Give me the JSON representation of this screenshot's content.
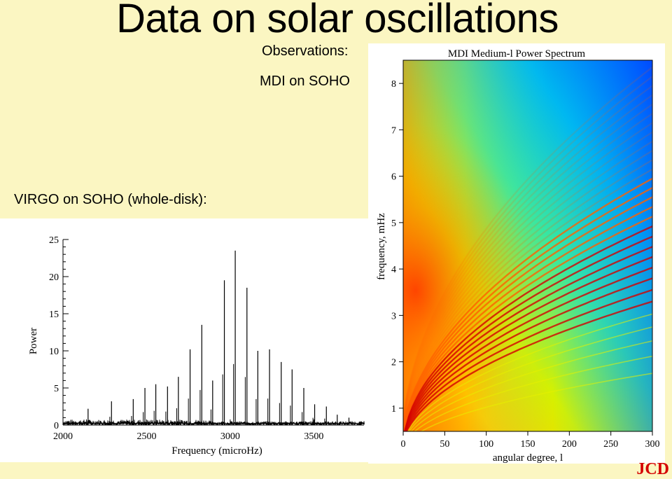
{
  "title": "Data on solar oscillations",
  "observations_label": "Observations:",
  "mdi_label": "MDI on SOHO",
  "virgo_label": "VIRGO on SOHO (whole-disk):",
  "watermark": "JCD",
  "colors": {
    "background": "#fbf6c2",
    "watermark": "#d40000"
  },
  "chart_data": [
    {
      "type": "line",
      "title": "",
      "xlabel": "Frequency (microHz)",
      "ylabel": "Power",
      "xlim": [
        2000,
        3800
      ],
      "ylim": [
        0,
        25
      ],
      "x_ticks": [
        2000,
        2500,
        3000,
        3500
      ],
      "y_ticks": [
        0,
        5,
        10,
        15,
        20,
        25
      ],
      "peaks": [
        {
          "x": 2150,
          "y": 2.2
        },
        {
          "x": 2290,
          "y": 3.2
        },
        {
          "x": 2420,
          "y": 3.5
        },
        {
          "x": 2490,
          "y": 5.0
        },
        {
          "x": 2555,
          "y": 5.5
        },
        {
          "x": 2625,
          "y": 5.2
        },
        {
          "x": 2690,
          "y": 6.5
        },
        {
          "x": 2760,
          "y": 10.2
        },
        {
          "x": 2830,
          "y": 13.5
        },
        {
          "x": 2895,
          "y": 6.0
        },
        {
          "x": 2965,
          "y": 19.5
        },
        {
          "x": 3030,
          "y": 23.5
        },
        {
          "x": 3100,
          "y": 18.5
        },
        {
          "x": 3165,
          "y": 10.0
        },
        {
          "x": 3235,
          "y": 10.2
        },
        {
          "x": 3305,
          "y": 8.5
        },
        {
          "x": 3370,
          "y": 7.5
        },
        {
          "x": 3440,
          "y": 5.0
        },
        {
          "x": 3505,
          "y": 2.8
        },
        {
          "x": 3575,
          "y": 2.5
        },
        {
          "x": 3640,
          "y": 1.4
        },
        {
          "x": 3710,
          "y": 1.0
        }
      ]
    },
    {
      "type": "heatmap",
      "title": "MDI Medium-l Power Spectrum",
      "xlabel": "angular degree, l",
      "ylabel": "frequency, mHz",
      "xlim": [
        0,
        300
      ],
      "ylim": [
        0.5,
        8.5
      ],
      "x_ticks": [
        0,
        50,
        100,
        150,
        200,
        250,
        300
      ],
      "y_ticks": [
        1,
        2,
        3,
        4,
        5,
        6,
        7,
        8
      ],
      "ridge_nu_at_l300": [
        1.75,
        2.12,
        2.45,
        2.75,
        3.03,
        3.3,
        3.55,
        3.8,
        4.03,
        4.26,
        4.48,
        4.7,
        4.92,
        5.13,
        5.34,
        5.55,
        5.75,
        5.95,
        6.15,
        6.35,
        6.55,
        6.75,
        6.95,
        7.15,
        7.35,
        7.55,
        7.75,
        7.95,
        8.15,
        8.35
      ]
    }
  ]
}
